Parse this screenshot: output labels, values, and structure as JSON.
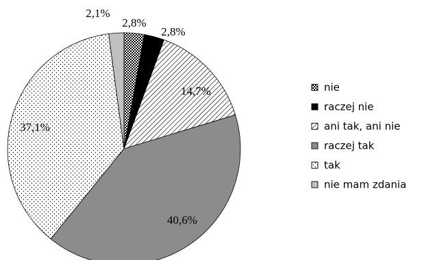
{
  "chart_data": {
    "type": "pie",
    "start_angle_deg": 0,
    "direction": "clockwise",
    "slices": [
      {
        "name": "nie",
        "value": 2.8,
        "label": "2,8%",
        "fill": "pat-checker"
      },
      {
        "name": "raczej nie",
        "value": 2.8,
        "label": "2,8%",
        "fill": "#000000"
      },
      {
        "name": "ani tak, ani nie",
        "value": 14.7,
        "label": "14,7%",
        "fill": "pat-diag"
      },
      {
        "name": "raczej tak",
        "value": 40.6,
        "label": "40,6%",
        "fill": "#8c8c8c"
      },
      {
        "name": "tak",
        "value": 37.1,
        "label": "37,1%",
        "fill": "pat-dots"
      },
      {
        "name": "nie mam zdania",
        "value": 2.1,
        "label": "2,1%",
        "fill": "#c0c0c0"
      }
    ],
    "legend": {
      "placement": "right",
      "entries": [
        "nie",
        "raczej nie",
        "ani tak, ani nie",
        "raczej tak",
        "tak",
        "nie mam zdania"
      ]
    }
  }
}
